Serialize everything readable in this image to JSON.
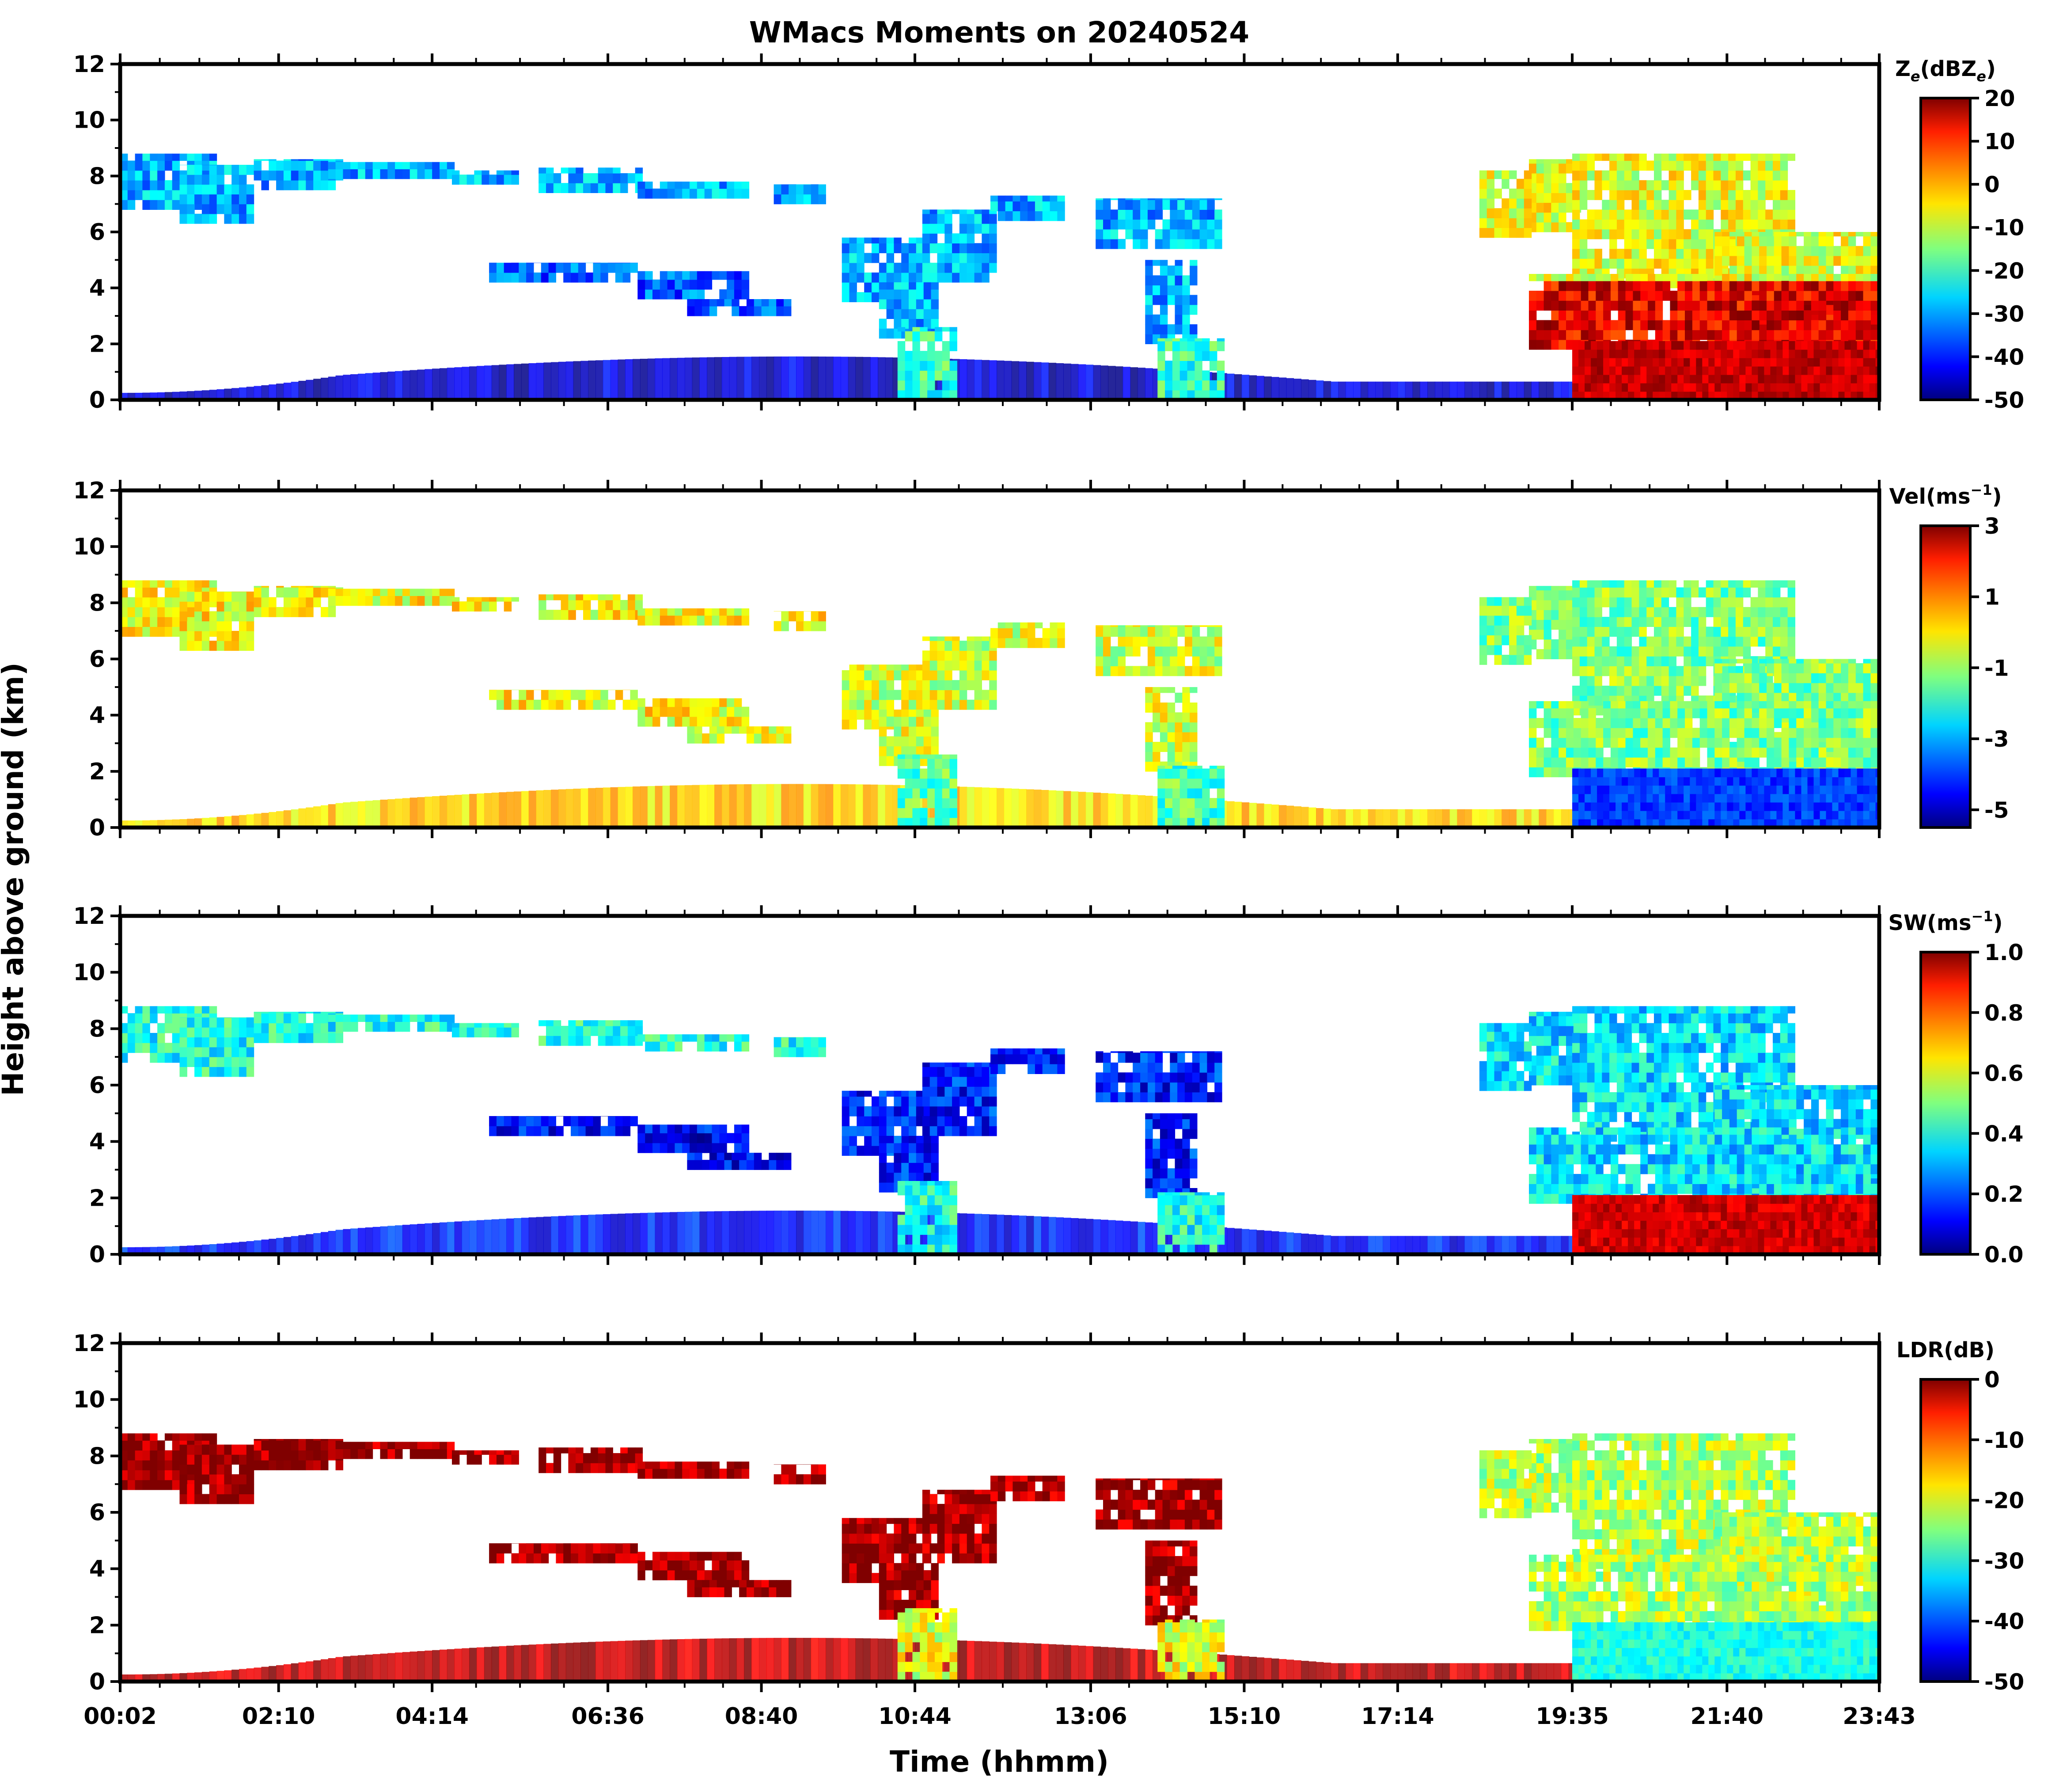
{
  "figure": {
    "title": "WMacs Moments on 20240524",
    "ylabel": "Height above ground (km)",
    "xlabel": "Time (hhmm)"
  },
  "chart_data": [
    {
      "type": "heatmap",
      "panel": "reflectivity",
      "colorbar_label_main": "Z",
      "colorbar_label_sub": "e",
      "colorbar_label_unit": "(dBZ",
      "colorbar_label_unit_sub": "e",
      "colorbar_label_close": ")",
      "colorbar_ticks": [
        "20",
        "10",
        "0",
        "-10",
        "-20",
        "-30",
        "-40",
        "-50"
      ],
      "vmin": -50,
      "vmax": 20,
      "y_ticks": [
        "0",
        "2",
        "4",
        "6",
        "8",
        "10",
        "12"
      ],
      "ylim": [
        0,
        12
      ],
      "x_ticks": [
        "00:02",
        "02:10",
        "04:14",
        "06:36",
        "08:40",
        "10:44",
        "13:06",
        "15:10",
        "17:14",
        "19:35",
        "21:40",
        "23:43"
      ]
    },
    {
      "type": "heatmap",
      "panel": "velocity",
      "colorbar_label_main": "Vel(ms",
      "colorbar_label_sup": "−1",
      "colorbar_label_close": ")",
      "colorbar_ticks": [
        "3",
        "1",
        "-1",
        "-3",
        "-5"
      ],
      "vmin": -5.5,
      "vmax": 3,
      "y_ticks": [
        "0",
        "2",
        "4",
        "6",
        "8",
        "10",
        "12"
      ],
      "ylim": [
        0,
        12
      ]
    },
    {
      "type": "heatmap",
      "panel": "spectrum_width",
      "colorbar_label_main": "SW(ms",
      "colorbar_label_sup": "−1",
      "colorbar_label_close": ")",
      "colorbar_ticks": [
        "1.0",
        "0.8",
        "0.6",
        "0.4",
        "0.2",
        "0.0"
      ],
      "vmin": 0,
      "vmax": 1,
      "y_ticks": [
        "0",
        "2",
        "4",
        "6",
        "8",
        "10",
        "12"
      ],
      "ylim": [
        0,
        12
      ]
    },
    {
      "type": "heatmap",
      "panel": "ldr",
      "colorbar_label_main": "LDR(dB)",
      "colorbar_ticks": [
        "0",
        "-10",
        "-20",
        "-30",
        "-40",
        "-50"
      ],
      "vmin": -50,
      "vmax": 0,
      "y_ticks": [
        "0",
        "2",
        "4",
        "6",
        "8",
        "10",
        "12"
      ],
      "ylim": [
        0,
        12
      ],
      "x_ticks": [
        "00:02",
        "02:10",
        "04:14",
        "06:36",
        "08:40",
        "10:44",
        "13:06",
        "15:10",
        "17:14",
        "19:35",
        "21:40",
        "23:43"
      ]
    }
  ],
  "cloud_layers": [
    {
      "name": "upper-cirrus-early",
      "t_start": "00:02",
      "t_end": "09:30",
      "z_base_km": 6.5,
      "z_top_km": 9.0
    },
    {
      "name": "mid-layer",
      "t_start": "05:00",
      "t_end": "09:00",
      "z_base_km": 3.0,
      "z_top_km": 5.0
    },
    {
      "name": "mid-level-cloud",
      "t_start": "09:30",
      "t_end": "15:30",
      "z_base_km": 2.0,
      "z_top_km": 7.5
    },
    {
      "name": "boundary-layer",
      "t_start": "00:02",
      "t_end": "19:35",
      "z_base_km": 0.0,
      "z_top_km": 1.5
    },
    {
      "name": "precipitation-system",
      "t_start": "19:00",
      "t_end": "23:43",
      "z_base_km": 0.0,
      "z_top_km": 9.0
    }
  ]
}
